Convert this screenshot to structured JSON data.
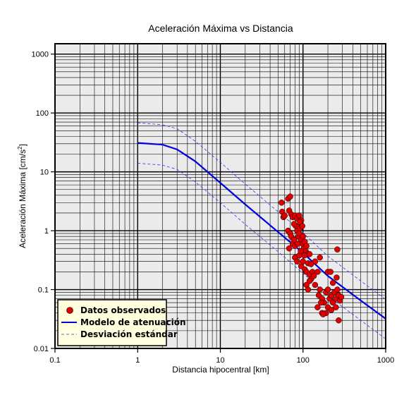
{
  "chart_data": {
    "type": "scatter",
    "title": "Aceleración Máxima vs Distancia",
    "xlabel": "Distancia hipocentral [km]",
    "ylabel": "Aceleración Máxima [cm/s",
    "ylabel_sup": "2",
    "ylabel_close": "]",
    "xscale": "log",
    "yscale": "log",
    "xlim": [
      0.1,
      1000
    ],
    "ylim": [
      0.01,
      1500
    ],
    "x_ticks": [
      {
        "value": 0.1,
        "label": "0.1"
      },
      {
        "value": 1,
        "label": "1"
      },
      {
        "value": 10,
        "label": "10"
      },
      {
        "value": 100,
        "label": "100"
      },
      {
        "value": 1000,
        "label": "1000"
      }
    ],
    "y_ticks": [
      {
        "value": 0.01,
        "label": "0.01"
      },
      {
        "value": 0.1,
        "label": "0.1"
      },
      {
        "value": 1,
        "label": "1"
      },
      {
        "value": 10,
        "label": "10"
      },
      {
        "value": 100,
        "label": "100"
      },
      {
        "value": 1000,
        "label": "1000"
      }
    ],
    "grid": true,
    "legend_position": "bottom-left",
    "colors": {
      "background": "#ebebeb",
      "points": "#e00000",
      "model": "#0000dd",
      "std": "#3333ff",
      "legend_bg": "#ffffdd"
    },
    "series": [
      {
        "name": "Datos observados",
        "kind": "points",
        "points": [
          [
            55,
            3.0
          ],
          [
            56,
            2.1
          ],
          [
            58,
            1.7
          ],
          [
            60,
            1.8
          ],
          [
            66,
            3.5
          ],
          [
            70,
            3.8
          ],
          [
            68,
            2.2
          ],
          [
            72,
            1.9
          ],
          [
            75,
            1.7
          ],
          [
            80,
            1.8
          ],
          [
            85,
            1.6
          ],
          [
            90,
            1.8
          ],
          [
            95,
            1.5
          ],
          [
            66,
            1.0
          ],
          [
            70,
            0.9
          ],
          [
            72,
            0.8
          ],
          [
            68,
            0.5
          ],
          [
            75,
            0.6
          ],
          [
            78,
            0.7
          ],
          [
            80,
            0.55
          ],
          [
            82,
            1.2
          ],
          [
            85,
            1.0
          ],
          [
            88,
            0.8
          ],
          [
            90,
            0.9
          ],
          [
            92,
            1.1
          ],
          [
            95,
            0.7
          ],
          [
            98,
            0.6
          ],
          [
            100,
            0.8
          ],
          [
            102,
            0.5
          ],
          [
            105,
            0.65
          ],
          [
            108,
            0.45
          ],
          [
            110,
            0.55
          ],
          [
            115,
            0.4
          ],
          [
            80,
            0.35
          ],
          [
            85,
            0.3
          ],
          [
            90,
            0.38
          ],
          [
            95,
            0.25
          ],
          [
            100,
            0.3
          ],
          [
            105,
            0.22
          ],
          [
            110,
            0.2
          ],
          [
            115,
            0.28
          ],
          [
            120,
            0.18
          ],
          [
            125,
            0.15
          ],
          [
            130,
            0.2
          ],
          [
            135,
            0.17
          ],
          [
            140,
            0.12
          ],
          [
            110,
            0.12
          ],
          [
            115,
            0.1
          ],
          [
            120,
            0.14
          ],
          [
            150,
            0.2
          ],
          [
            155,
            0.08
          ],
          [
            160,
            0.1
          ],
          [
            170,
            0.07
          ],
          [
            180,
            0.06
          ],
          [
            190,
            0.09
          ],
          [
            200,
            0.1
          ],
          [
            210,
            0.07
          ],
          [
            220,
            0.08
          ],
          [
            230,
            0.06
          ],
          [
            240,
            0.09
          ],
          [
            250,
            0.07
          ],
          [
            260,
            0.1
          ],
          [
            270,
            0.08
          ],
          [
            280,
            0.065
          ],
          [
            150,
            0.05
          ],
          [
            170,
            0.04
          ],
          [
            200,
            0.05
          ],
          [
            220,
            0.045
          ],
          [
            250,
            0.05
          ],
          [
            270,
            0.03
          ],
          [
            200,
            0.2
          ],
          [
            215,
            0.2
          ],
          [
            230,
            0.13
          ],
          [
            255,
            0.16
          ],
          [
            260,
            0.48
          ],
          [
            120,
            0.4
          ],
          [
            140,
            0.3
          ],
          [
            160,
            0.35
          ],
          [
            78,
            1.3
          ],
          [
            92,
            1.4
          ],
          [
            98,
            1.2
          ],
          [
            86,
            0.6
          ],
          [
            94,
            0.45
          ],
          [
            104,
            0.38
          ],
          [
            125,
            0.27
          ],
          [
            165,
            0.06
          ],
          [
            190,
            0.04
          ],
          [
            175,
            0.038
          ],
          [
            290,
            0.075
          ]
        ]
      },
      {
        "name": "Modelo de atenuación",
        "kind": "line",
        "points": [
          [
            1,
            31
          ],
          [
            2,
            29
          ],
          [
            3,
            24
          ],
          [
            5,
            15
          ],
          [
            10,
            6.5
          ],
          [
            20,
            2.8
          ],
          [
            50,
            0.95
          ],
          [
            100,
            0.42
          ],
          [
            200,
            0.17
          ],
          [
            500,
            0.065
          ],
          [
            1000,
            0.032
          ]
        ]
      },
      {
        "name": "Desviación estándar",
        "kind": "dashed",
        "points": [
          [
            1,
            68
          ],
          [
            2,
            63
          ],
          [
            3,
            54
          ],
          [
            5,
            33
          ],
          [
            10,
            14.5
          ],
          [
            20,
            6.2
          ],
          [
            50,
            2.1
          ],
          [
            100,
            0.92
          ],
          [
            200,
            0.37
          ],
          [
            500,
            0.14
          ],
          [
            1000,
            0.068
          ]
        ]
      },
      {
        "kind": "dashed",
        "points": [
          [
            1,
            14
          ],
          [
            2,
            13
          ],
          [
            3,
            11
          ],
          [
            5,
            6.7
          ],
          [
            10,
            3.0
          ],
          [
            20,
            1.28
          ],
          [
            50,
            0.44
          ],
          [
            100,
            0.19
          ],
          [
            200,
            0.078
          ],
          [
            500,
            0.03
          ],
          [
            1000,
            0.0145
          ]
        ]
      }
    ],
    "legend": [
      {
        "label": "Datos observados",
        "kind": "points"
      },
      {
        "label": "Modelo de atenuación",
        "kind": "line"
      },
      {
        "label": "Desviación estándar",
        "kind": "dashed"
      }
    ]
  }
}
